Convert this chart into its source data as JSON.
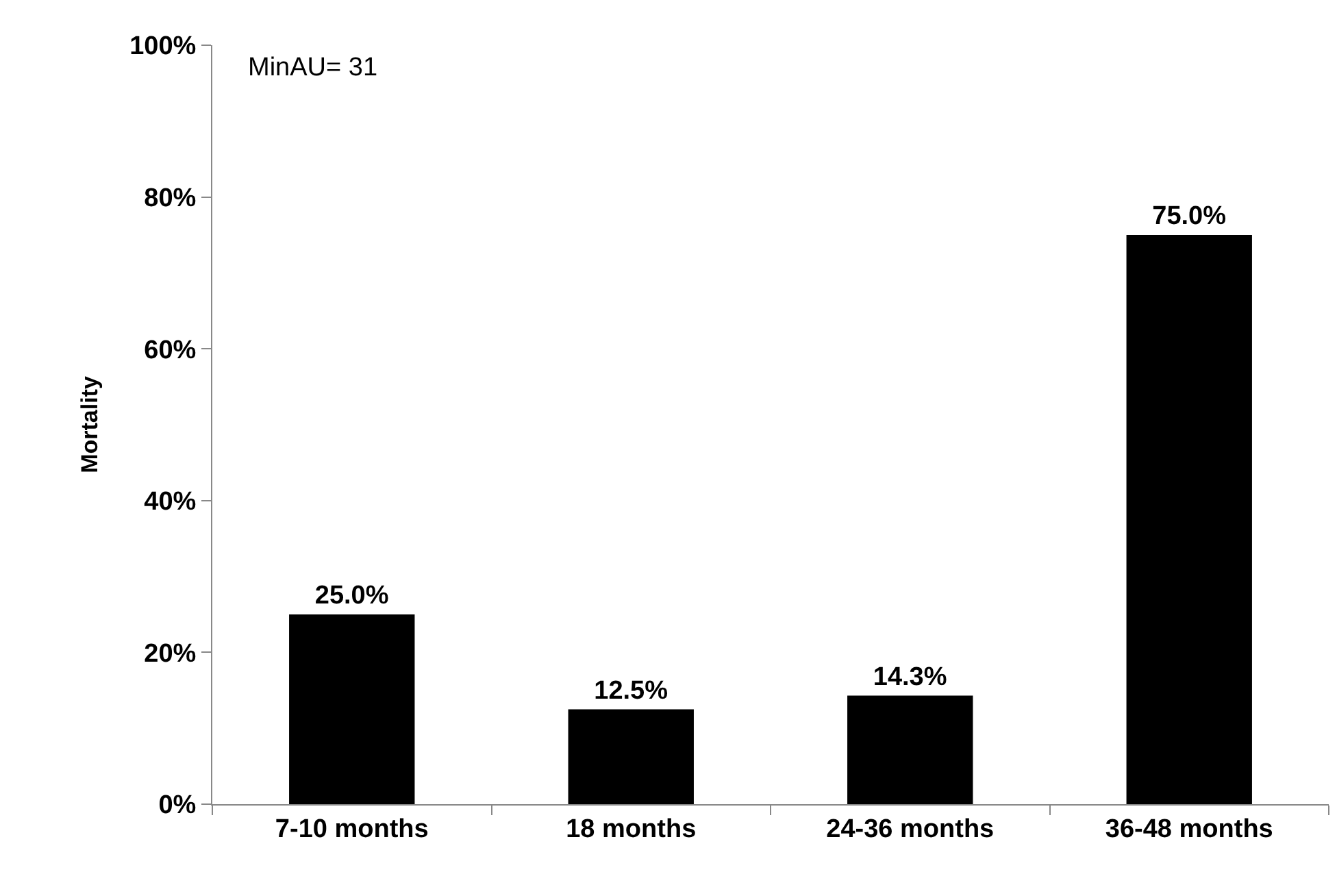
{
  "chart_data": {
    "type": "bar",
    "ylabel": "Mortality",
    "categories": [
      "7-10 months",
      "18 months",
      "24-36 months",
      "36-48 months"
    ],
    "values": [
      25.0,
      12.5,
      14.3,
      75.0
    ],
    "value_labels": [
      "25.0%",
      "12.5%",
      "14.3%",
      "75.0%"
    ],
    "color": "#000000",
    "ylim": [
      0,
      100
    ],
    "yticks": [
      {
        "value": 0,
        "label": "0%"
      },
      {
        "value": 20,
        "label": "20%"
      },
      {
        "value": 40,
        "label": "40%"
      },
      {
        "value": 60,
        "label": "60%"
      },
      {
        "value": 80,
        "label": "80%"
      },
      {
        "value": 100,
        "label": "100%"
      }
    ],
    "annotations": [
      "MinAU= 31"
    ],
    "grid": false,
    "legend": false
  }
}
